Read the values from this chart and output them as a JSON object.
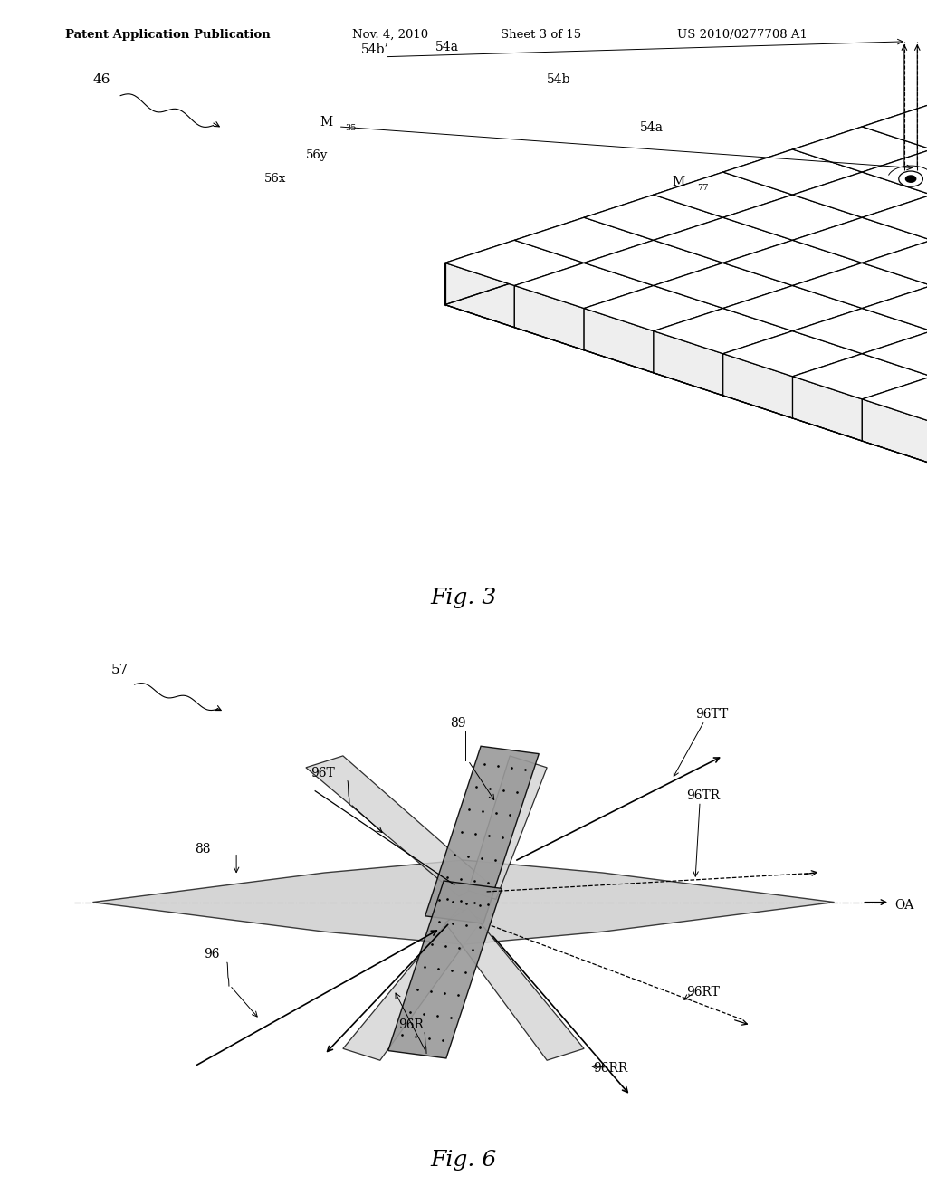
{
  "bg_color": "#ffffff",
  "header_text": "Patent Application Publication",
  "header_date": "Nov. 4, 2010",
  "header_sheet": "Sheet 3 of 15",
  "header_patent": "US 2010/0277708 A1",
  "fig3_caption": "Fig. 3",
  "fig6_caption": "Fig. 6",
  "fig3_label_46": "46",
  "fig3_label_M35": "M",
  "fig3_label_M35_sub": "35",
  "fig3_label_56x": "56x",
  "fig3_label_56y": "56y",
  "fig3_label_54b_prime": "54b’",
  "fig3_label_54a_top": "54a",
  "fig3_label_54b": "54b",
  "fig3_label_54a_right": "54a",
  "fig3_label_M77": "M",
  "fig3_label_M77_sub": "77",
  "fig6_label_57": "57",
  "fig6_label_88": "88",
  "fig6_label_89": "89",
  "fig6_label_96": "96",
  "fig6_label_96T": "96T",
  "fig6_label_96R": "96R",
  "fig6_label_96TT": "96TT",
  "fig6_label_96TR": "96TR",
  "fig6_label_96RT": "96RT",
  "fig6_label_96RR": "96RR",
  "fig6_label_OA": "OA",
  "line_color": "#000000",
  "grid_face": "#ffffff",
  "grid_edge": "#000000",
  "side_face_left": "#dddddd",
  "side_face_front": "#eeeeee",
  "beam_fill": "#cccccc",
  "plate_fill": "#aaaaaa",
  "wing_fill": "#cccccc"
}
